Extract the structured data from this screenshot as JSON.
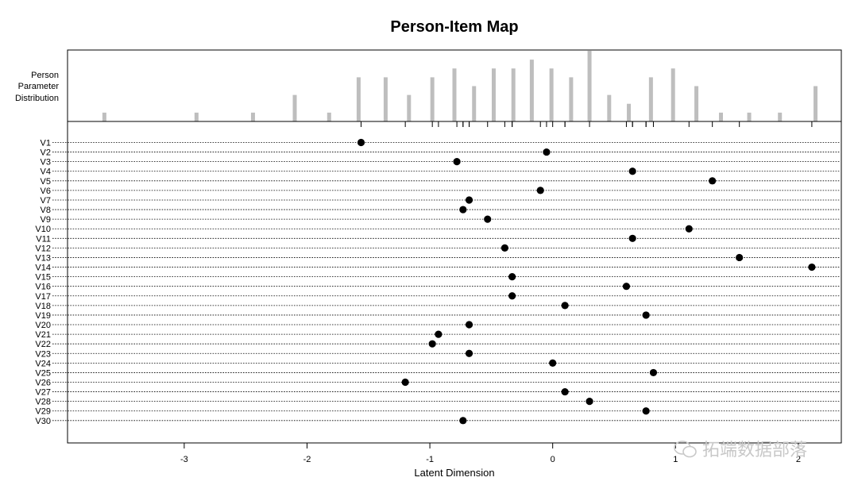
{
  "chart_data": {
    "type": "scatter",
    "title": "Person-Item Map",
    "xlabel": "Latent Dimension",
    "top_panel_label": [
      "Person",
      "Parameter",
      "Distribution"
    ],
    "xlim": [
      -3.95,
      2.35
    ],
    "xticks": [
      -3,
      -2,
      -1,
      0,
      1,
      2
    ],
    "xtick_labels": [
      "-3",
      "-2",
      "-1",
      "0",
      "1",
      "2"
    ],
    "person_distribution": {
      "type": "bar",
      "x": [
        -3.65,
        -2.9,
        -2.44,
        -2.1,
        -1.82,
        -1.58,
        -1.36,
        -1.17,
        -0.98,
        -0.8,
        -0.64,
        -0.48,
        -0.32,
        -0.17,
        -0.01,
        0.15,
        0.3,
        0.46,
        0.62,
        0.8,
        0.98,
        1.17,
        1.37,
        1.6,
        1.85,
        2.14
      ],
      "counts": [
        1,
        1,
        1,
        3,
        1,
        5,
        5,
        3,
        5,
        6,
        4,
        6,
        6,
        7,
        6,
        5,
        8,
        3,
        2,
        5,
        6,
        4,
        1,
        1,
        1,
        4
      ]
    },
    "items": {
      "labels": [
        "V1",
        "V2",
        "V3",
        "V4",
        "V5",
        "V6",
        "V7",
        "V8",
        "V9",
        "V10",
        "V11",
        "V12",
        "V13",
        "V14",
        "V15",
        "V16",
        "V17",
        "V18",
        "V19",
        "V20",
        "V21",
        "V22",
        "V23",
        "V24",
        "V25",
        "V26",
        "V27",
        "V28",
        "V29",
        "V30"
      ],
      "locations": [
        -1.56,
        -0.05,
        -0.78,
        0.65,
        1.3,
        -0.1,
        -0.68,
        -0.73,
        -0.53,
        1.11,
        0.65,
        -0.39,
        1.52,
        2.11,
        -0.33,
        0.6,
        -0.33,
        0.1,
        0.76,
        -0.68,
        -0.93,
        -0.98,
        -0.68,
        0.0,
        0.82,
        -1.2,
        0.1,
        0.3,
        0.76,
        -0.73
      ]
    }
  },
  "watermark": "拓端数据部落"
}
